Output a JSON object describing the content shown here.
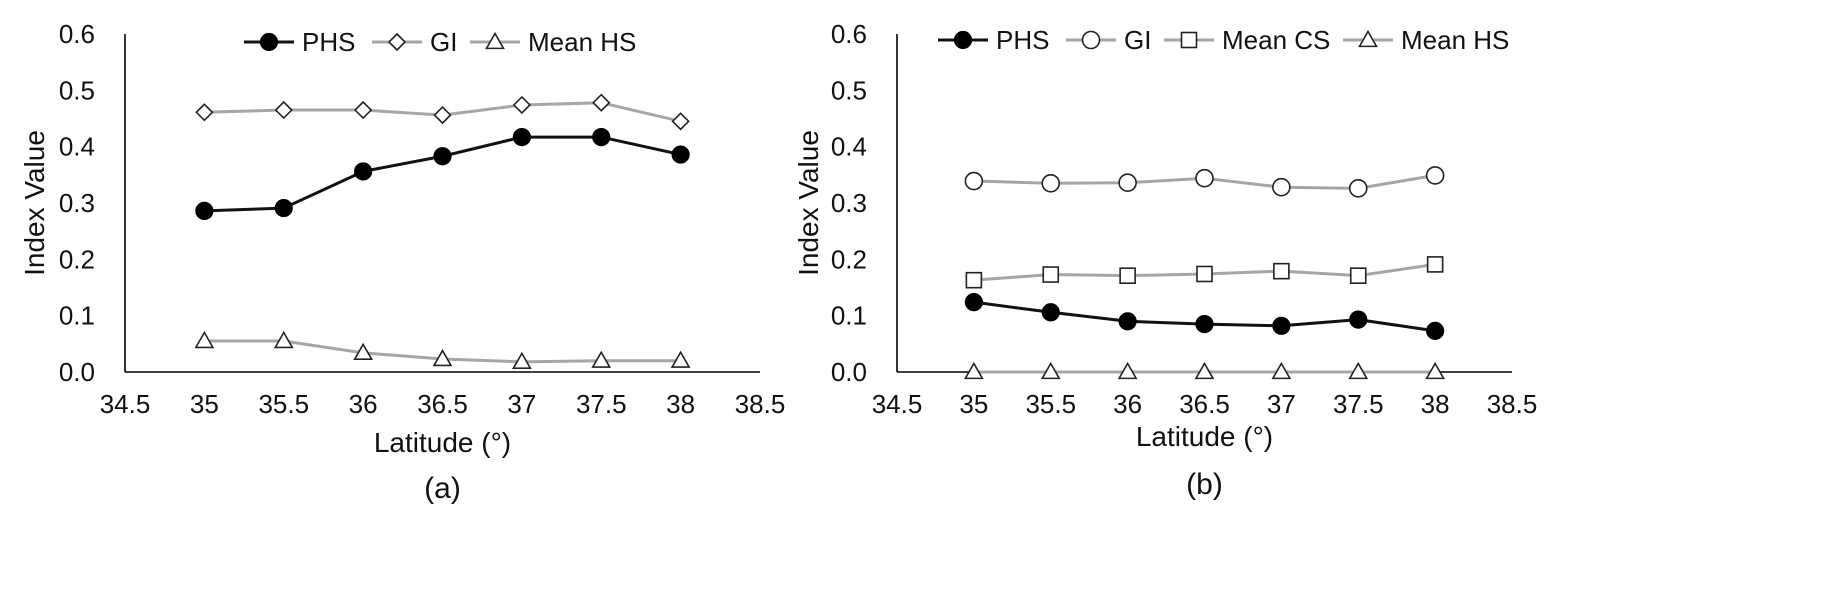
{
  "chart_data": [
    {
      "type": "line",
      "panel_label": "(a)",
      "xlabel": "Latitude (°)",
      "ylabel": "Index Value",
      "xlim": [
        34.5,
        38.5
      ],
      "ylim": [
        0,
        0.6
      ],
      "x_ticks": [
        "34.5",
        "35",
        "35.5",
        "36",
        "36.5",
        "37",
        "37.5",
        "38",
        "38.5"
      ],
      "y_ticks": [
        "0.0",
        "0.1",
        "0.2",
        "0.3",
        "0.4",
        "0.5",
        "0.6"
      ],
      "grid": false,
      "legend_position": "top",
      "x": [
        35,
        35.5,
        36,
        36.5,
        37,
        37.5,
        38
      ],
      "series": [
        {
          "name": "PHS",
          "marker": "filled-circle",
          "line_color": "#111111",
          "values": [
            0.286,
            0.291,
            0.356,
            0.383,
            0.417,
            0.417,
            0.386
          ]
        },
        {
          "name": "GI",
          "marker": "open-diamond",
          "line_color": "#a6a6a6",
          "values": [
            0.461,
            0.465,
            0.465,
            0.456,
            0.474,
            0.478,
            0.445
          ]
        },
        {
          "name": "Mean HS",
          "marker": "open-triangle",
          "line_color": "#a6a6a6",
          "values": [
            0.055,
            0.055,
            0.034,
            0.023,
            0.018,
            0.02,
            0.02
          ]
        }
      ]
    },
    {
      "type": "line",
      "panel_label": "(b)",
      "xlabel": "Latitude (°)",
      "ylabel": "Index Value",
      "xlim": [
        34.5,
        38.5
      ],
      "ylim": [
        0,
        0.6
      ],
      "x_ticks": [
        "34.5",
        "35",
        "35.5",
        "36",
        "36.5",
        "37",
        "37.5",
        "38",
        "38.5"
      ],
      "y_ticks": [
        "0.0",
        "0.1",
        "0.2",
        "0.3",
        "0.4",
        "0.5",
        "0.6"
      ],
      "grid": false,
      "legend_position": "top",
      "x": [
        35,
        35.5,
        36,
        36.5,
        37,
        37.5,
        38
      ],
      "series": [
        {
          "name": "PHS",
          "marker": "filled-circle",
          "line_color": "#111111",
          "values": [
            0.124,
            0.106,
            0.09,
            0.085,
            0.082,
            0.093,
            0.073
          ]
        },
        {
          "name": "GI",
          "marker": "open-circle",
          "line_color": "#a6a6a6",
          "values": [
            0.339,
            0.335,
            0.336,
            0.344,
            0.328,
            0.326,
            0.349
          ]
        },
        {
          "name": "Mean CS",
          "marker": "open-square",
          "line_color": "#a6a6a6",
          "values": [
            0.163,
            0.173,
            0.171,
            0.174,
            0.179,
            0.171,
            0.191
          ]
        },
        {
          "name": "Mean HS",
          "marker": "open-triangle",
          "line_color": "#a6a6a6",
          "values": [
            0.0,
            0.0,
            0.0,
            0.0,
            0.0,
            0.0,
            0.0
          ]
        }
      ]
    }
  ]
}
